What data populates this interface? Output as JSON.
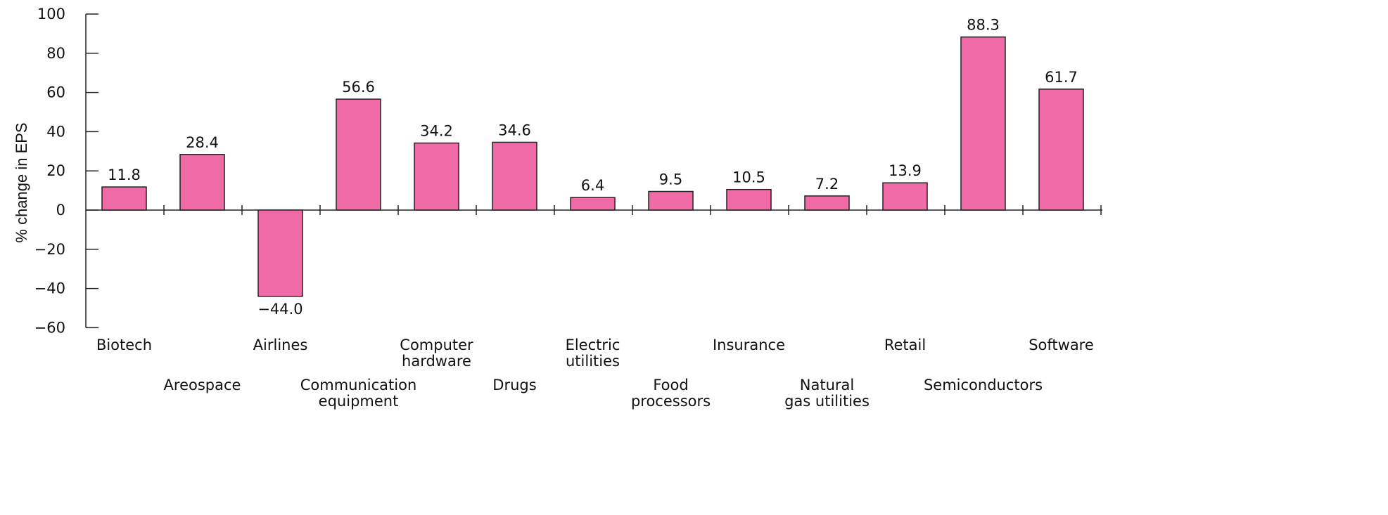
{
  "chart_data": {
    "type": "bar",
    "title": "",
    "xlabel": "",
    "ylabel": "% change in EPS",
    "ylim": [
      -60,
      100
    ],
    "yticks": [
      "100",
      "80",
      "60",
      "40",
      "20",
      "0",
      "−20",
      "−40",
      "−60"
    ],
    "categories": [
      "Biotech",
      "Areospace",
      "Airlines",
      "Communication equipment",
      "Computer hardware",
      "Drugs",
      "Electric utilities",
      "Food processors",
      "Insurance",
      "Natural gas utilities",
      "Retail",
      "Semiconductors",
      "Software"
    ],
    "category_label_lines": [
      [
        "Biotech"
      ],
      [
        "Areospace"
      ],
      [
        "Airlines"
      ],
      [
        "Communication",
        "equipment"
      ],
      [
        "Computer",
        "hardware"
      ],
      [
        "Drugs"
      ],
      [
        "Electric",
        "utilities"
      ],
      [
        "Food",
        "processors"
      ],
      [
        "Insurance"
      ],
      [
        "Natural",
        "gas utilities"
      ],
      [
        "Retail"
      ],
      [
        "Semiconductors"
      ],
      [
        "Software"
      ]
    ],
    "values": [
      11.8,
      28.4,
      -44.0,
      56.6,
      34.2,
      34.6,
      6.4,
      9.5,
      10.5,
      7.2,
      13.9,
      88.3,
      61.7
    ],
    "value_labels": [
      "11.8",
      "28.4",
      "−44.0",
      "56.6",
      "34.2",
      "34.6",
      "6.4",
      "9.5",
      "10.5",
      "7.2",
      "13.9",
      "88.3",
      "61.7"
    ],
    "bar_color": "#f06aa6",
    "bar_edge_color": "#222222",
    "grid": false,
    "legend": "none"
  }
}
